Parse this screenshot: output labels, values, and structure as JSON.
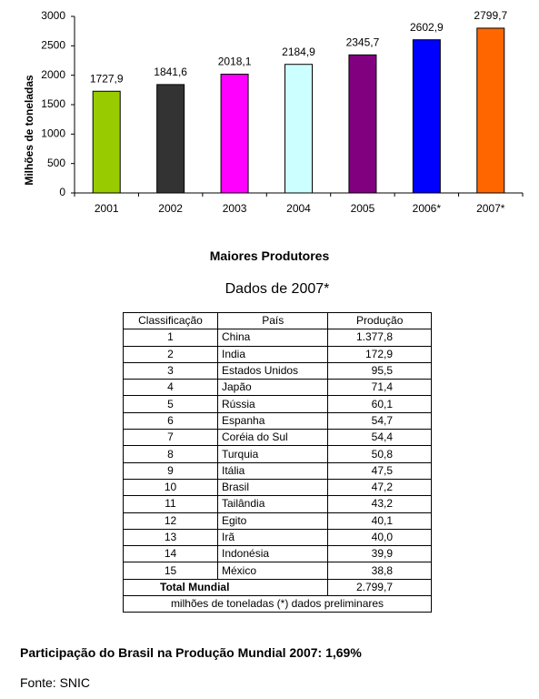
{
  "chart_data": {
    "type": "bar",
    "ylabel": "Milhões de toneladas",
    "categories": [
      "2001",
      "2002",
      "2003",
      "2004",
      "2005",
      "2006*",
      "2007*"
    ],
    "values": [
      1727.9,
      1841.6,
      2018.1,
      2184.9,
      2345.7,
      2602.9,
      2799.7
    ],
    "value_labels": [
      "1727,9",
      "1841,6",
      "2018,1",
      "2184,9",
      "2345,7",
      "2602,9",
      "2799,7"
    ],
    "colors": [
      "#99cc00",
      "#333333",
      "#ff00ff",
      "#ccffff",
      "#800080",
      "#0000ff",
      "#ff6600"
    ],
    "ylim": [
      0,
      3000
    ],
    "yticks": [
      0,
      500,
      1000,
      1500,
      2000,
      2500,
      3000
    ],
    "grid": false
  },
  "section": {
    "title": "Maiores Produtores",
    "subtitle": "Dados de 2007*"
  },
  "table": {
    "header": [
      "Classificação",
      "País",
      "Produção"
    ],
    "rows": [
      [
        "1",
        "China",
        "1.377,8"
      ],
      [
        "2",
        "India",
        "172,9"
      ],
      [
        "3",
        "Estados Unidos",
        "95,5"
      ],
      [
        "4",
        "Japão",
        "71,4"
      ],
      [
        "5",
        "Rússia",
        "60,1"
      ],
      [
        "6",
        "Espanha",
        "54,7"
      ],
      [
        "7",
        "Coréia do Sul",
        "54,4"
      ],
      [
        "8",
        "Turquia",
        "50,8"
      ],
      [
        "9",
        "Itália",
        "47,5"
      ],
      [
        "10",
        "Brasil",
        "47,2"
      ],
      [
        "11",
        "Tailândia",
        "43,2"
      ],
      [
        "12",
        "Egito",
        "40,1"
      ],
      [
        "13",
        "Irã",
        "40,0"
      ],
      [
        "14",
        "Indonésia",
        "39,9"
      ],
      [
        "15",
        "México",
        "38,8"
      ]
    ],
    "total": [
      "Total Mundial",
      "2.799,7"
    ],
    "note": "milhões de toneladas (*) dados preliminares"
  },
  "footer": {
    "highlight": "Participação do Brasil na Produção Mundial 2007: 1,69%",
    "source": "Fonte: SNIC"
  }
}
